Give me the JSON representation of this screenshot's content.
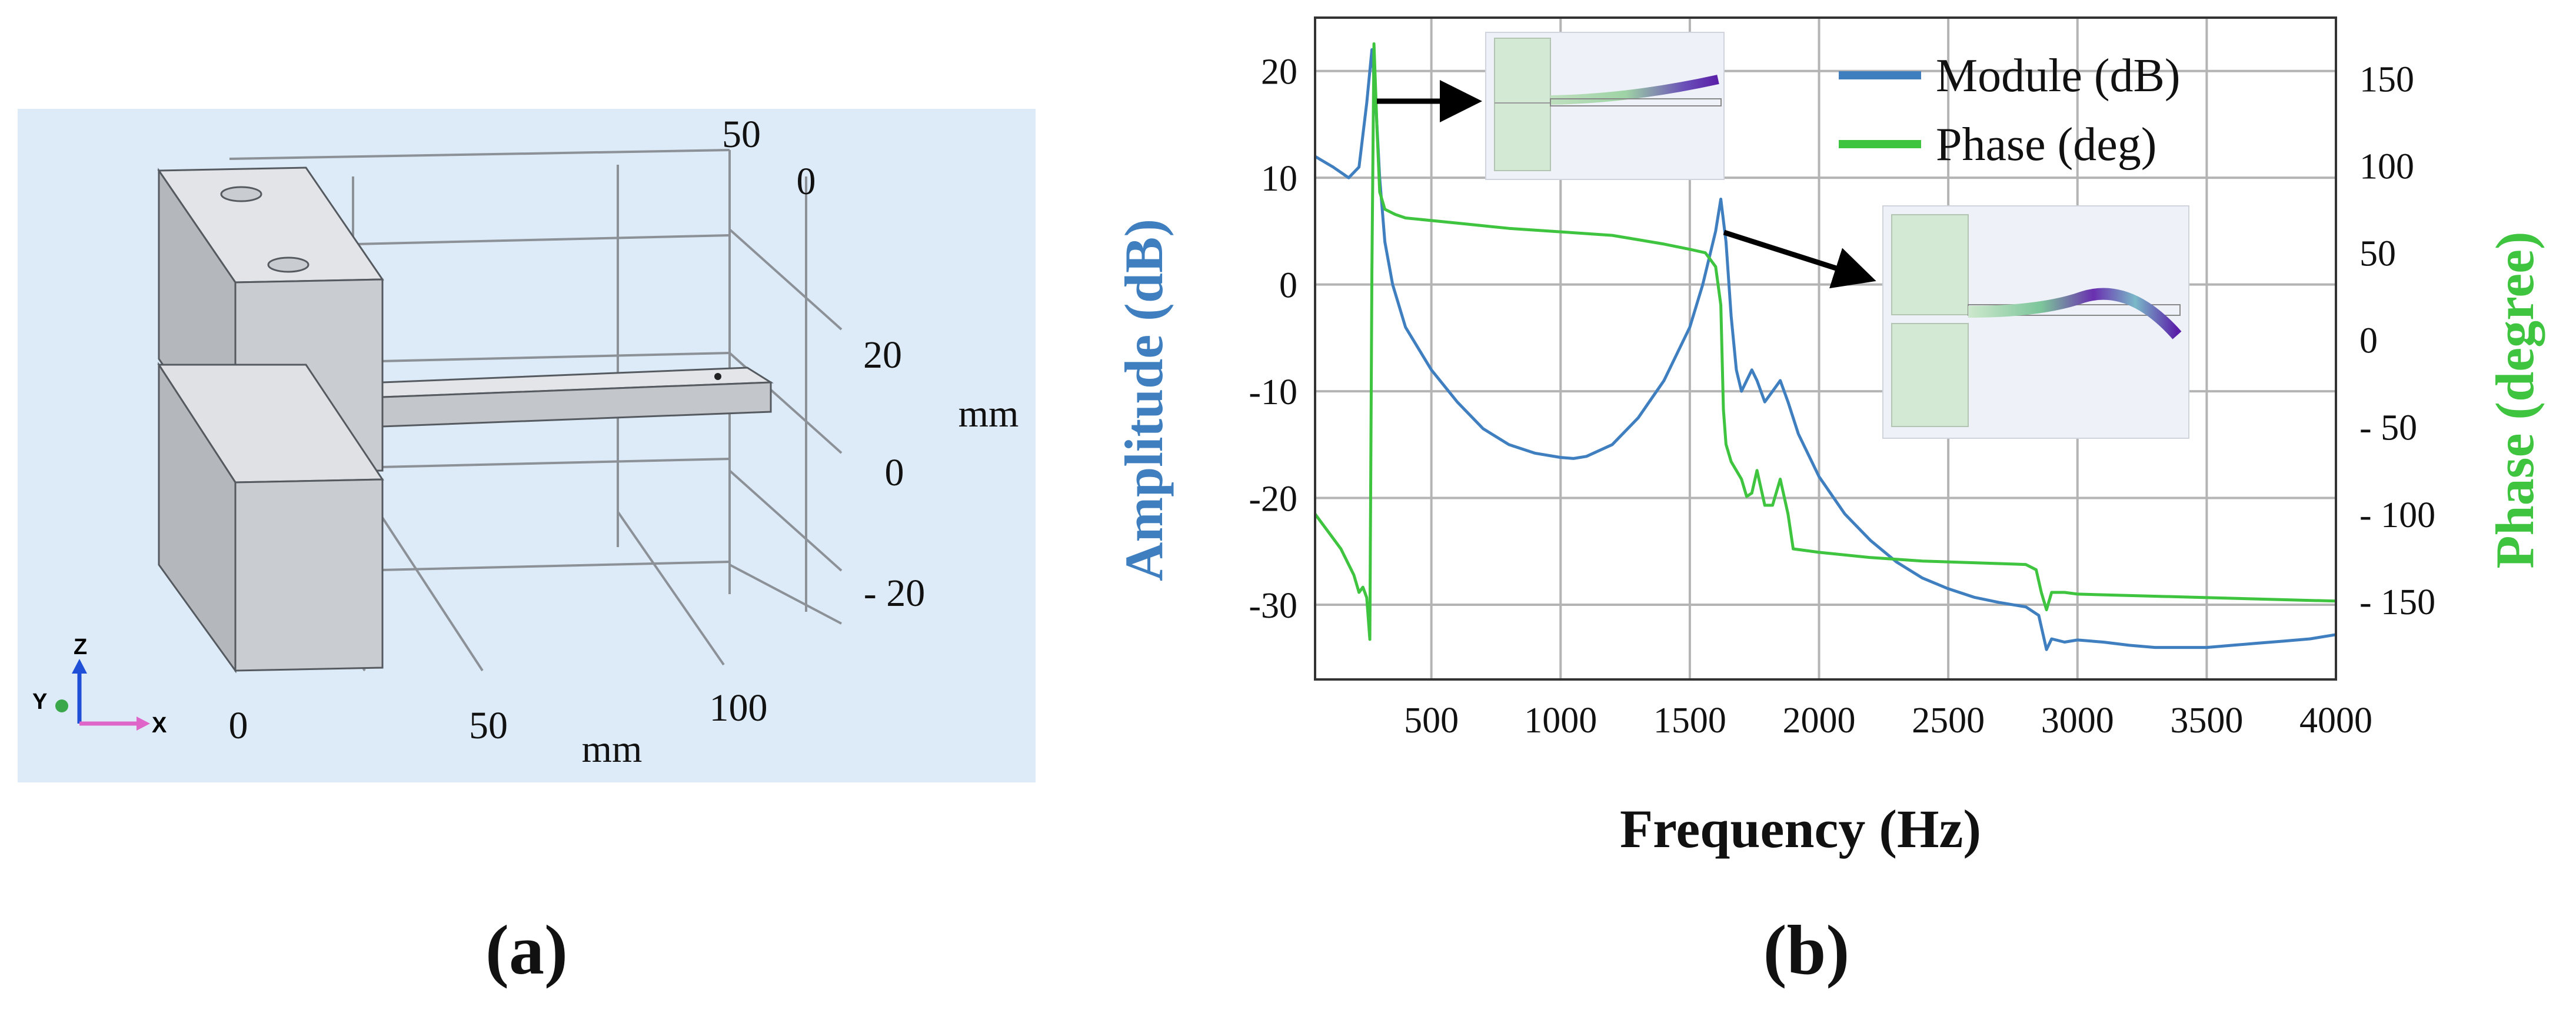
{
  "panel_a": {
    "label": "(a)",
    "x_ticks": [
      "0",
      "50",
      "100"
    ],
    "x_unit": "mm",
    "y_ticks": [
      "50",
      "0"
    ],
    "z_ticks": [
      "20",
      "0",
      "- 20"
    ],
    "z_unit": "mm",
    "triad": {
      "z": "Z",
      "y": "Y",
      "x": "X"
    },
    "colors": {
      "background": "#dcebf7",
      "block_front": "#c9ccd0",
      "block_top": "#e2e4e7",
      "block_side": "#b4b8bd",
      "grid": "#8c9097"
    }
  },
  "panel_b": {
    "label": "(b)",
    "colors": {
      "module": "#3f7fc0",
      "phase": "#3fc43f",
      "grid": "#b4b4b4"
    }
  },
  "chart_data": {
    "type": "line",
    "title": "",
    "xlabel": "Frequency (Hz)",
    "ylabel": "Amplitude (dB)",
    "y2label": "Phase (degree)",
    "xlim": [
      50,
      4000
    ],
    "ylim": [
      -37,
      25
    ],
    "y2lim": [
      -195,
      185
    ],
    "x_ticks": [
      500,
      1000,
      1500,
      2000,
      2500,
      3000,
      3500,
      4000
    ],
    "x_tick_labels": [
      "500",
      "1000",
      "1500",
      "2000",
      "2500",
      "3000",
      "3500",
      "4000"
    ],
    "y_ticks": [
      20,
      10,
      0,
      -10,
      -20,
      -30
    ],
    "y_tick_labels": [
      "20",
      "10",
      "0",
      "-10",
      "-20",
      "-30"
    ],
    "y2_ticks": [
      150,
      100,
      50,
      0,
      -50,
      -100,
      -150
    ],
    "y2_tick_labels": [
      "150",
      "100",
      "50",
      "0",
      "- 50",
      "- 100",
      "- 150"
    ],
    "grid": true,
    "legend_position": "top-right",
    "series": [
      {
        "name": "Module (dB)",
        "axis": "left",
        "x": [
          50,
          120,
          180,
          220,
          250,
          270,
          285,
          300,
          320,
          350,
          400,
          500,
          600,
          700,
          800,
          900,
          1000,
          1050,
          1100,
          1200,
          1300,
          1400,
          1500,
          1550,
          1600,
          1620,
          1640,
          1660,
          1680,
          1700,
          1720,
          1740,
          1760,
          1790,
          1820,
          1850,
          1880,
          1920,
          2000,
          2100,
          2200,
          2300,
          2400,
          2500,
          2600,
          2700,
          2800,
          2850,
          2880,
          2900,
          2950,
          3000,
          3100,
          3200,
          3300,
          3400,
          3500,
          3600,
          3700,
          3800,
          3900,
          4000
        ],
        "values": [
          12,
          11,
          10,
          11,
          17,
          22,
          17,
          10,
          4,
          0,
          -4,
          -8,
          -11,
          -13.5,
          -15,
          -15.8,
          -16.2,
          -16.3,
          -16.1,
          -15,
          -12.5,
          -9,
          -4,
          0,
          5,
          8,
          4,
          -3,
          -8,
          -10,
          -9,
          -8,
          -9,
          -11,
          -10,
          -9,
          -11,
          -14,
          -18,
          -21.5,
          -24,
          -26,
          -27.5,
          -28.5,
          -29.3,
          -29.8,
          -30.2,
          -31,
          -34.2,
          -33.2,
          -33.5,
          -33.3,
          -33.5,
          -33.8,
          -34,
          -34,
          -34,
          -33.8,
          -33.6,
          -33.4,
          -33.2,
          -32.8
        ]
      },
      {
        "name": "Phase (deg)",
        "axis": "right",
        "x": [
          50,
          100,
          150,
          200,
          220,
          235,
          250,
          262,
          270,
          278,
          290,
          300,
          320,
          360,
          400,
          600,
          800,
          1000,
          1200,
          1400,
          1500,
          1560,
          1600,
          1620,
          1630,
          1640,
          1660,
          1700,
          1720,
          1740,
          1760,
          1790,
          1820,
          1850,
          1880,
          1900,
          2000,
          2200,
          2400,
          2600,
          2800,
          2840,
          2860,
          2880,
          2900,
          2950,
          3000,
          3500,
          4000
        ],
        "values": [
          -100,
          -110,
          -120,
          -135,
          -145,
          -142,
          -148,
          -172,
          40,
          170,
          120,
          85,
          75,
          72,
          70,
          67,
          64,
          62,
          60,
          55,
          52,
          50,
          42,
          20,
          -40,
          -60,
          -70,
          -80,
          -90,
          -88,
          -75,
          -95,
          -95,
          -80,
          -100,
          -120,
          -122,
          -125,
          -127,
          -128,
          -129,
          -132,
          -145,
          -155,
          -145,
          -145,
          -146,
          -148,
          -150
        ]
      }
    ],
    "insets": [
      {
        "frequency_hz": 270,
        "amplitude_db": 22,
        "mode": "first bending mode"
      },
      {
        "frequency_hz": 1620,
        "amplitude_db": 8,
        "mode": "second bending mode"
      }
    ]
  }
}
